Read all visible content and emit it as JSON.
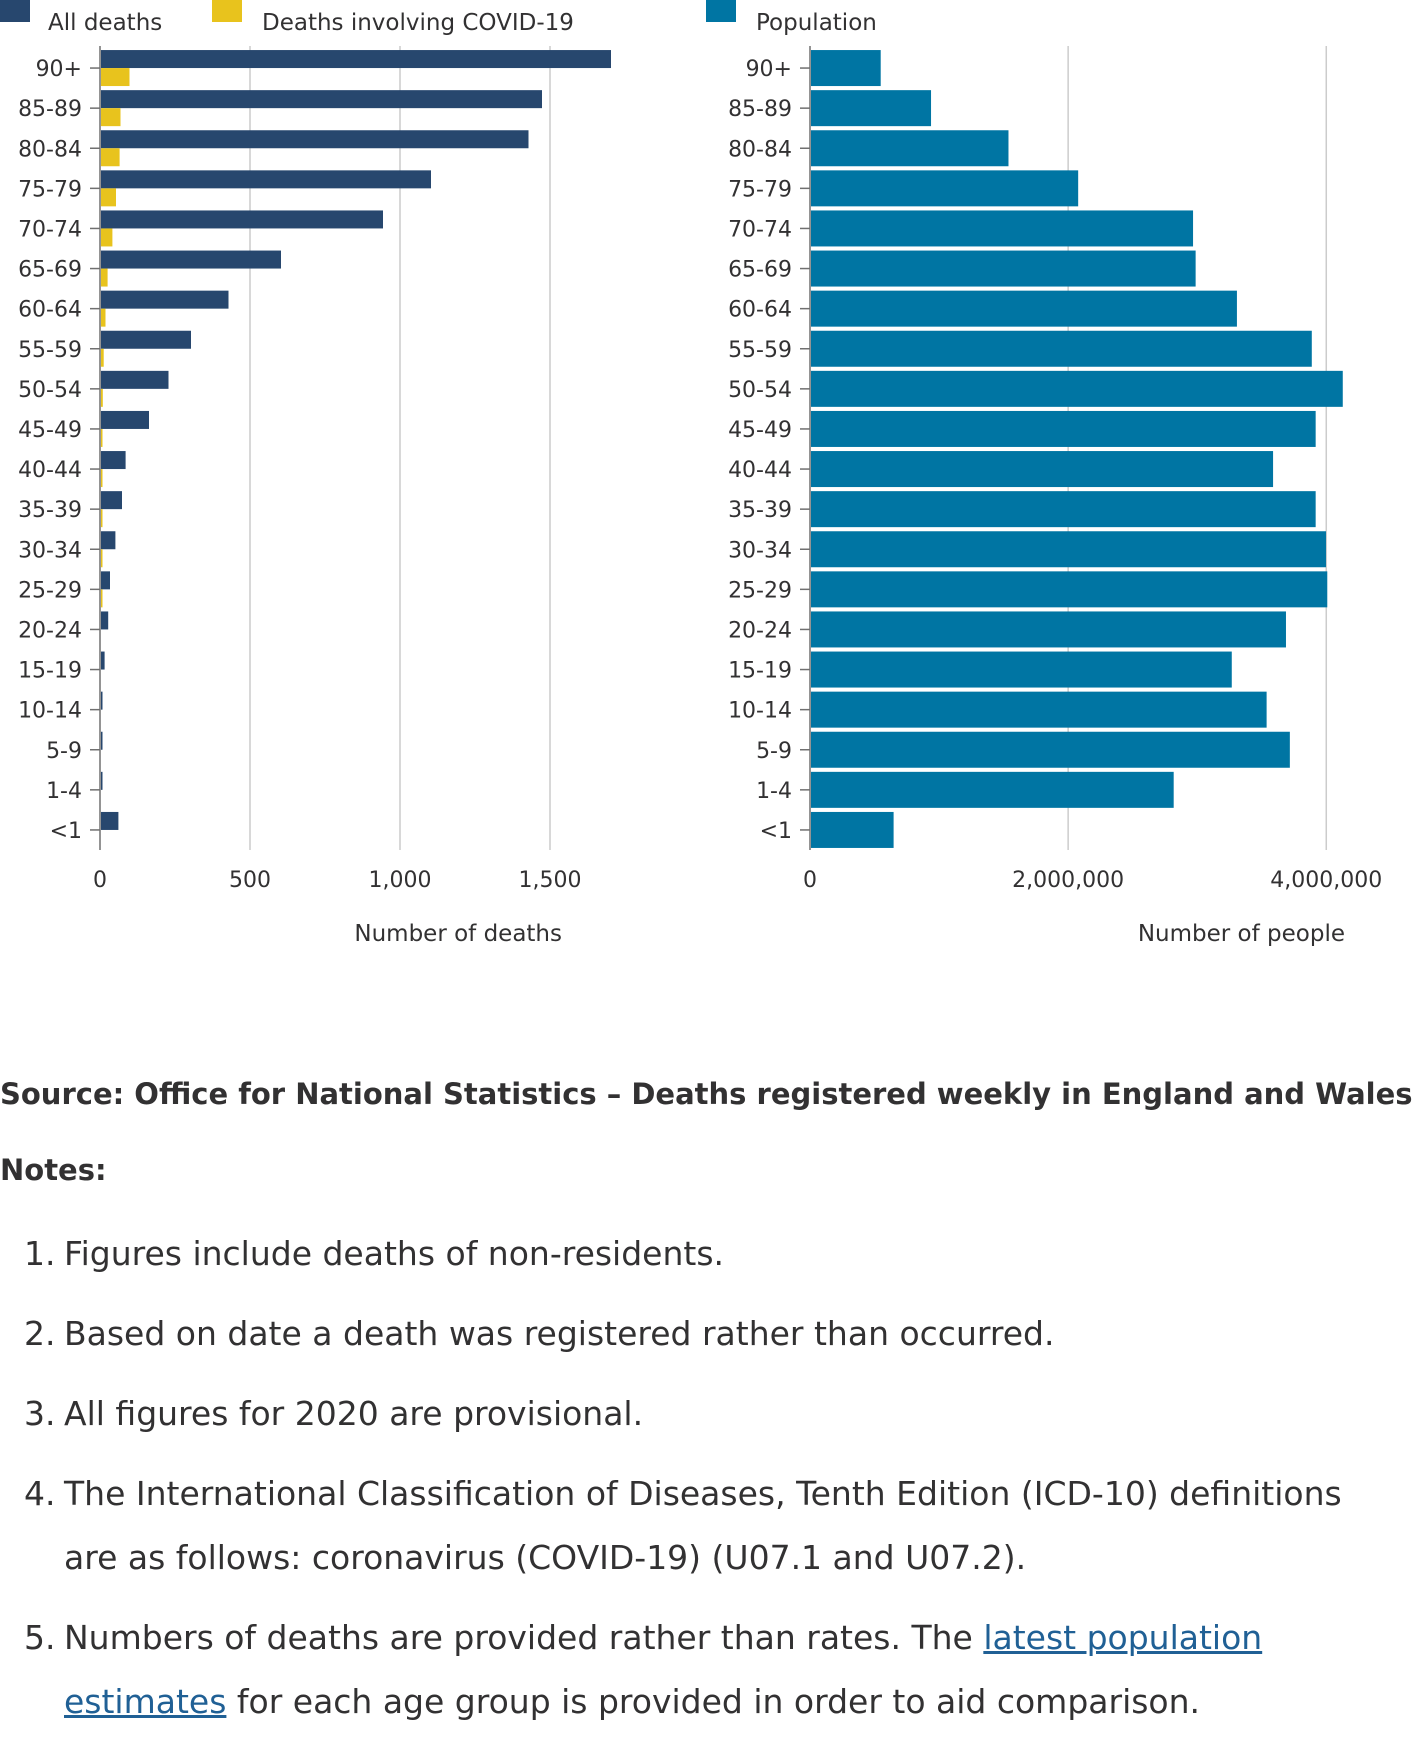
{
  "chart_data": [
    {
      "type": "bar",
      "orientation": "horizontal",
      "categories": [
        "90+",
        "85-89",
        "80-84",
        "75-79",
        "70-74",
        "65-69",
        "60-64",
        "55-59",
        "50-54",
        "45-49",
        "40-44",
        "35-39",
        "30-34",
        "25-29",
        "20-24",
        "15-19",
        "10-14",
        "5-9",
        "1-4",
        "<1"
      ],
      "series": [
        {
          "name": "All deaths",
          "color": "#27476e",
          "values": [
            1700,
            1470,
            1425,
            1100,
            940,
            600,
            425,
            300,
            225,
            160,
            82,
            70,
            48,
            30,
            24,
            12,
            5,
            4,
            4,
            58
          ]
        },
        {
          "name": "Deaths involving COVID-19",
          "color": "#e8c31d",
          "values": [
            95,
            65,
            62,
            50,
            38,
            22,
            15,
            9,
            6,
            4,
            2,
            1,
            1,
            1,
            0,
            0,
            0,
            0,
            0,
            0
          ]
        }
      ],
      "xlim": [
        0,
        1700
      ],
      "xticks": [
        "0",
        "500",
        "1,000",
        "1,500"
      ],
      "xtick_values": [
        0,
        500,
        1000,
        1500
      ],
      "xlabel": "Number of deaths",
      "grid": "vertical",
      "legend": "top-left"
    },
    {
      "type": "bar",
      "orientation": "horizontal",
      "categories": [
        "90+",
        "85-89",
        "80-84",
        "75-79",
        "70-74",
        "65-69",
        "60-64",
        "55-59",
        "50-54",
        "45-49",
        "40-44",
        "35-39",
        "30-34",
        "25-29",
        "20-24",
        "15-19",
        "10-14",
        "5-9",
        "1-4",
        "<1"
      ],
      "series": [
        {
          "name": "Population",
          "color": "#0075a3",
          "values": [
            540000,
            930000,
            1530000,
            2070000,
            2960000,
            2980000,
            3300000,
            3880000,
            4120000,
            3910000,
            3580000,
            3910000,
            3990000,
            4000000,
            3680000,
            3260000,
            3530000,
            3710000,
            2810000,
            640000
          ]
        }
      ],
      "xlim": [
        0,
        4300000
      ],
      "xticks": [
        "0",
        "2,000,000",
        "4,000,000"
      ],
      "xtick_values": [
        0,
        2000000,
        4000000
      ],
      "xlabel": "Number of people",
      "grid": "vertical",
      "legend": "top"
    }
  ],
  "source": "Source: Office for National Statistics – Deaths registered weekly in England and Wales",
  "notes": {
    "heading": "Notes:",
    "items": [
      {
        "num": "1.",
        "text": "Figures include deaths of non-residents."
      },
      {
        "num": "2.",
        "text": "Based on date a death was registered rather than occurred."
      },
      {
        "num": "3.",
        "text": "All figures for 2020 are provisional."
      },
      {
        "num": "4.",
        "text": "The International Classification of Diseases, Tenth Edition (ICD-10) definitions are as follows: coronavirus (COVID-19) (U07.1 and U07.2)."
      },
      {
        "num": "5.",
        "before": "Numbers of deaths are provided rather than rates. The ",
        "link": "latest population estimates",
        "after": " for each age group is provided in order to aid comparison."
      }
    ]
  },
  "colors": {
    "text": "#323132",
    "grid": "#cccccc",
    "axis": "#707070",
    "link": "#206095"
  }
}
